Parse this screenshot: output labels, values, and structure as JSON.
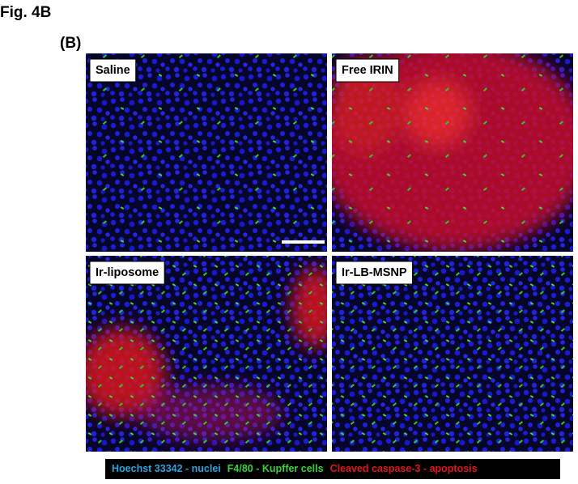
{
  "figure_label": "Fig. 4B",
  "panel_label": "(B)",
  "panels": [
    {
      "label": "Saline"
    },
    {
      "label": "Free IRIN"
    },
    {
      "label": "Ir-liposome"
    },
    {
      "label": "Ir-LB-MSNP"
    }
  ],
  "legend": [
    {
      "text": "Hoechst 33342 - nuclei",
      "color": "#2ba3dc"
    },
    {
      "text": "F4/80 - Kupffer cells",
      "color": "#3ccf3c"
    },
    {
      "text": "Cleaved caspase-3  - apoptosis",
      "color": "#e0161e"
    }
  ]
}
